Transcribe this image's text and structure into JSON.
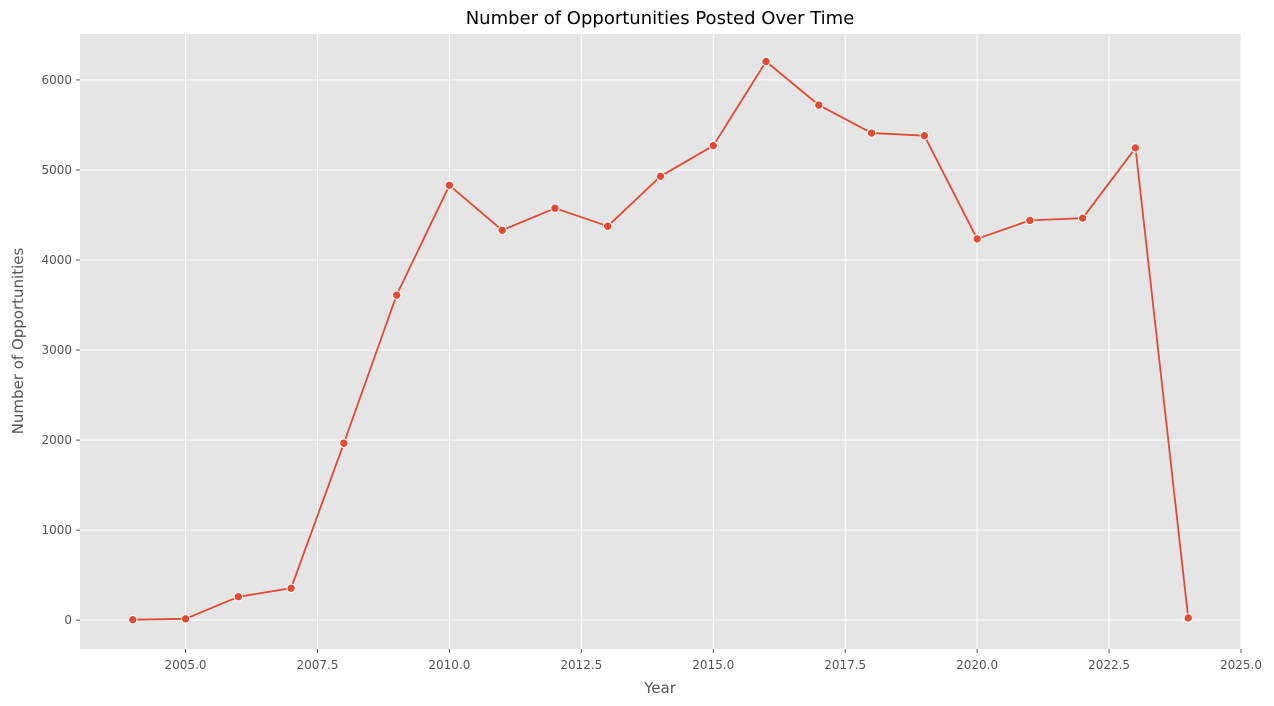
{
  "chart_data": {
    "type": "line",
    "title": "Number of Opportunities Posted Over Time",
    "xlabel": "Year",
    "ylabel": "Number of Opportunities",
    "xlim": [
      2003.0,
      2025.0
    ],
    "ylim": [
      -320,
      6510
    ],
    "x_ticks": [
      2005.0,
      2007.5,
      2010.0,
      2012.5,
      2015.0,
      2017.5,
      2020.0,
      2022.5,
      2025.0
    ],
    "x_tick_labels": [
      "2005.0",
      "2007.5",
      "2010.0",
      "2012.5",
      "2015.0",
      "2017.5",
      "2020.0",
      "2022.5",
      "2025.0"
    ],
    "y_ticks": [
      0,
      1000,
      2000,
      3000,
      4000,
      5000,
      6000
    ],
    "y_tick_labels": [
      "0",
      "1000",
      "2000",
      "3000",
      "4000",
      "5000",
      "6000"
    ],
    "grid": true,
    "background": "#e5e5e5",
    "series": [
      {
        "color": "#e24a33",
        "marker": "circle",
        "x": [
          2004,
          2005,
          2006,
          2007,
          2008,
          2009,
          2010,
          2011,
          2012,
          2013,
          2014,
          2015,
          2016,
          2017,
          2018,
          2019,
          2020,
          2021,
          2022,
          2023,
          2024
        ],
        "y": [
          5,
          15,
          260,
          355,
          1965,
          3610,
          4830,
          4330,
          4575,
          4375,
          4930,
          5270,
          6205,
          5720,
          5410,
          5380,
          4235,
          4440,
          4465,
          5245,
          25
        ]
      }
    ]
  }
}
